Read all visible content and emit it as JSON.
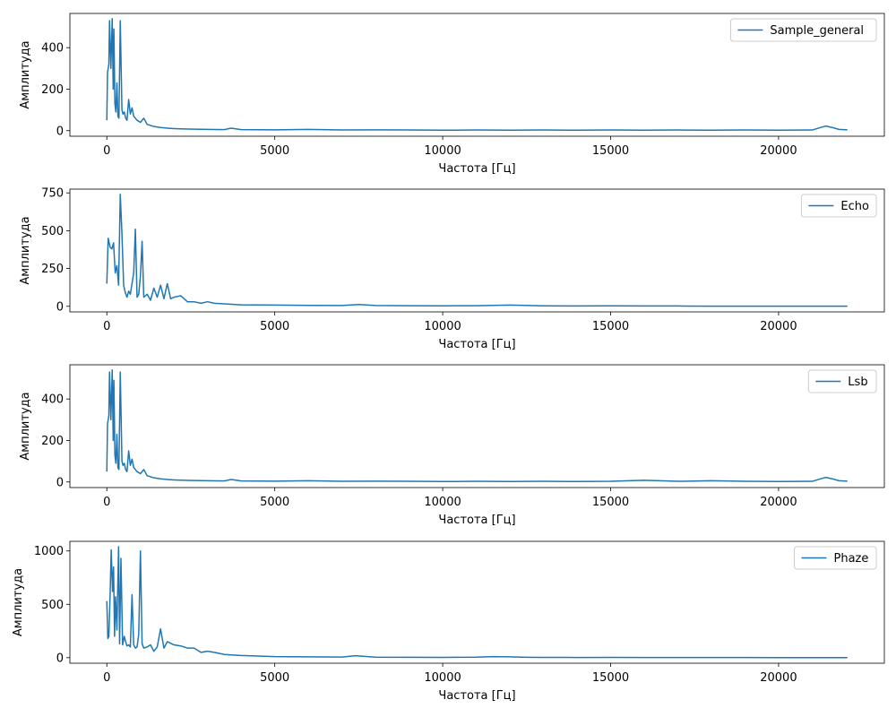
{
  "figure": {
    "background": "#ffffff",
    "line_color": "#1f77b4"
  },
  "chart_data": [
    {
      "type": "line",
      "xlabel": "Частота [Гц]",
      "ylabel": "Амплитуда",
      "xlim": [
        -1100,
        23150
      ],
      "ylim": [
        -27,
        565
      ],
      "xticks": [
        0,
        5000,
        10000,
        15000,
        20000
      ],
      "xtick_labels": [
        "0",
        "5000",
        "10000",
        "15000",
        "20000"
      ],
      "yticks": [
        0,
        200,
        400
      ],
      "ytick_labels": [
        "0",
        "200",
        "400"
      ],
      "legend": {
        "label": "Sample_general",
        "placement": "upper right"
      },
      "grid": false,
      "series": [
        {
          "name": "Sample_general",
          "x": [
            0,
            20,
            60,
            80,
            120,
            140,
            160,
            190,
            210,
            240,
            270,
            300,
            330,
            360,
            400,
            450,
            480,
            520,
            560,
            600,
            650,
            700,
            750,
            800,
            900,
            1000,
            1100,
            1200,
            1300,
            1400,
            1600,
            1800,
            2000,
            2300,
            2600,
            3000,
            3500,
            3700,
            4000,
            5000,
            6000,
            7000,
            8000,
            9000,
            10000,
            11000,
            12000,
            13000,
            14000,
            15000,
            16000,
            17000,
            18000,
            19000,
            20000,
            21000,
            21400,
            21600,
            21800,
            22050
          ],
          "y": [
            50,
            280,
            320,
            530,
            300,
            420,
            540,
            200,
            490,
            130,
            90,
            230,
            70,
            60,
            530,
            100,
            80,
            90,
            60,
            50,
            150,
            80,
            110,
            70,
            50,
            40,
            60,
            30,
            25,
            20,
            15,
            12,
            10,
            8,
            7,
            6,
            5,
            12,
            5,
            4,
            6,
            3,
            4,
            3,
            2,
            3,
            2,
            3,
            2,
            3,
            2,
            3,
            2,
            3,
            2,
            3,
            22,
            15,
            6,
            4
          ]
        }
      ]
    },
    {
      "type": "line",
      "xlabel": "Частота [Гц]",
      "ylabel": "Амплитуда",
      "xlim": [
        -1100,
        23150
      ],
      "ylim": [
        -37,
        775
      ],
      "xticks": [
        0,
        5000,
        10000,
        15000,
        20000
      ],
      "xtick_labels": [
        "0",
        "5000",
        "10000",
        "15000",
        "20000"
      ],
      "yticks": [
        0,
        250,
        500,
        750
      ],
      "ytick_labels": [
        "0",
        "250",
        "500",
        "750"
      ],
      "legend": {
        "label": "Echo",
        "placement": "upper right"
      },
      "grid": false,
      "series": [
        {
          "name": "Echo",
          "x": [
            0,
            40,
            100,
            150,
            200,
            250,
            300,
            350,
            400,
            450,
            500,
            550,
            600,
            650,
            700,
            800,
            850,
            900,
            950,
            1000,
            1050,
            1100,
            1200,
            1300,
            1400,
            1500,
            1600,
            1700,
            1800,
            1900,
            2000,
            2200,
            2400,
            2600,
            2800,
            3000,
            3200,
            3600,
            4000,
            5000,
            6000,
            7000,
            7500,
            8000,
            9000,
            10000,
            11000,
            12000,
            13000,
            14000,
            15000,
            16000,
            17000,
            18000,
            19000,
            20000,
            21000,
            22050
          ],
          "y": [
            150,
            450,
            390,
            380,
            420,
            220,
            270,
            140,
            740,
            480,
            140,
            90,
            60,
            100,
            80,
            220,
            510,
            60,
            80,
            200,
            430,
            60,
            80,
            40,
            120,
            60,
            140,
            50,
            150,
            50,
            60,
            70,
            30,
            30,
            20,
            30,
            20,
            15,
            10,
            8,
            6,
            5,
            12,
            5,
            4,
            3,
            4,
            8,
            3,
            2,
            3,
            2,
            2,
            1,
            1,
            1,
            1,
            1
          ]
        }
      ]
    },
    {
      "type": "line",
      "xlabel": "Частота [Гц]",
      "ylabel": "Амплитуда",
      "xlim": [
        -1100,
        23150
      ],
      "ylim": [
        -27,
        565
      ],
      "xticks": [
        0,
        5000,
        10000,
        15000,
        20000
      ],
      "xtick_labels": [
        "0",
        "5000",
        "10000",
        "15000",
        "20000"
      ],
      "yticks": [
        0,
        200,
        400
      ],
      "ytick_labels": [
        "0",
        "200",
        "400"
      ],
      "legend": {
        "label": "Lsb",
        "placement": "upper right"
      },
      "grid": false,
      "series": [
        {
          "name": "Lsb",
          "x": [
            0,
            20,
            60,
            80,
            120,
            140,
            160,
            190,
            210,
            240,
            270,
            300,
            330,
            360,
            400,
            450,
            480,
            520,
            560,
            600,
            650,
            700,
            750,
            800,
            900,
            1000,
            1100,
            1200,
            1300,
            1400,
            1600,
            1800,
            2000,
            2300,
            2600,
            3000,
            3500,
            3700,
            4000,
            5000,
            6000,
            7000,
            8000,
            9000,
            10000,
            11000,
            12000,
            13000,
            14000,
            15000,
            16000,
            17000,
            18000,
            19000,
            20000,
            21000,
            21400,
            21600,
            21800,
            22050
          ],
          "y": [
            50,
            280,
            320,
            530,
            300,
            420,
            540,
            200,
            490,
            130,
            90,
            230,
            70,
            60,
            530,
            100,
            80,
            90,
            60,
            50,
            150,
            80,
            110,
            70,
            50,
            40,
            60,
            30,
            25,
            20,
            15,
            12,
            10,
            8,
            7,
            6,
            5,
            12,
            5,
            4,
            6,
            3,
            4,
            3,
            2,
            3,
            2,
            3,
            2,
            3,
            8,
            3,
            6,
            3,
            2,
            3,
            22,
            15,
            6,
            4
          ]
        }
      ]
    },
    {
      "type": "line",
      "xlabel": "Частота [Гц]",
      "ylabel": "Амплитуда",
      "xlim": [
        -1100,
        23150
      ],
      "ylim": [
        -52,
        1090
      ],
      "xticks": [
        0,
        5000,
        10000,
        15000,
        20000
      ],
      "xtick_labels": [
        "0",
        "5000",
        "10000",
        "15000",
        "20000"
      ],
      "yticks": [
        0,
        500,
        1000
      ],
      "ytick_labels": [
        "0",
        "500",
        "1000"
      ],
      "legend": {
        "label": "Phaze",
        "placement": "upper right"
      },
      "grid": false,
      "series": [
        {
          "name": "Phaze",
          "x": [
            0,
            30,
            60,
            100,
            130,
            170,
            200,
            230,
            260,
            300,
            350,
            380,
            420,
            470,
            520,
            560,
            600,
            650,
            700,
            750,
            800,
            850,
            900,
            950,
            1000,
            1050,
            1100,
            1200,
            1300,
            1400,
            1500,
            1600,
            1700,
            1800,
            2000,
            2200,
            2400,
            2600,
            2800,
            3000,
            3200,
            3500,
            4000,
            5000,
            6000,
            7000,
            7400,
            8000,
            9000,
            10000,
            11000,
            11500,
            12000,
            12500,
            13000,
            14000,
            15000,
            16000,
            17000,
            18000,
            19000,
            20000,
            21000,
            22050
          ],
          "y": [
            530,
            180,
            200,
            610,
            1010,
            620,
            850,
            200,
            570,
            260,
            1040,
            130,
            930,
            120,
            200,
            150,
            110,
            120,
            100,
            590,
            120,
            90,
            100,
            220,
            1000,
            130,
            90,
            100,
            120,
            60,
            100,
            270,
            90,
            150,
            120,
            110,
            90,
            90,
            50,
            60,
            50,
            30,
            20,
            10,
            8,
            6,
            18,
            5,
            4,
            3,
            5,
            10,
            8,
            4,
            3,
            2,
            3,
            2,
            2,
            2,
            2,
            1,
            1,
            1
          ]
        }
      ]
    }
  ]
}
